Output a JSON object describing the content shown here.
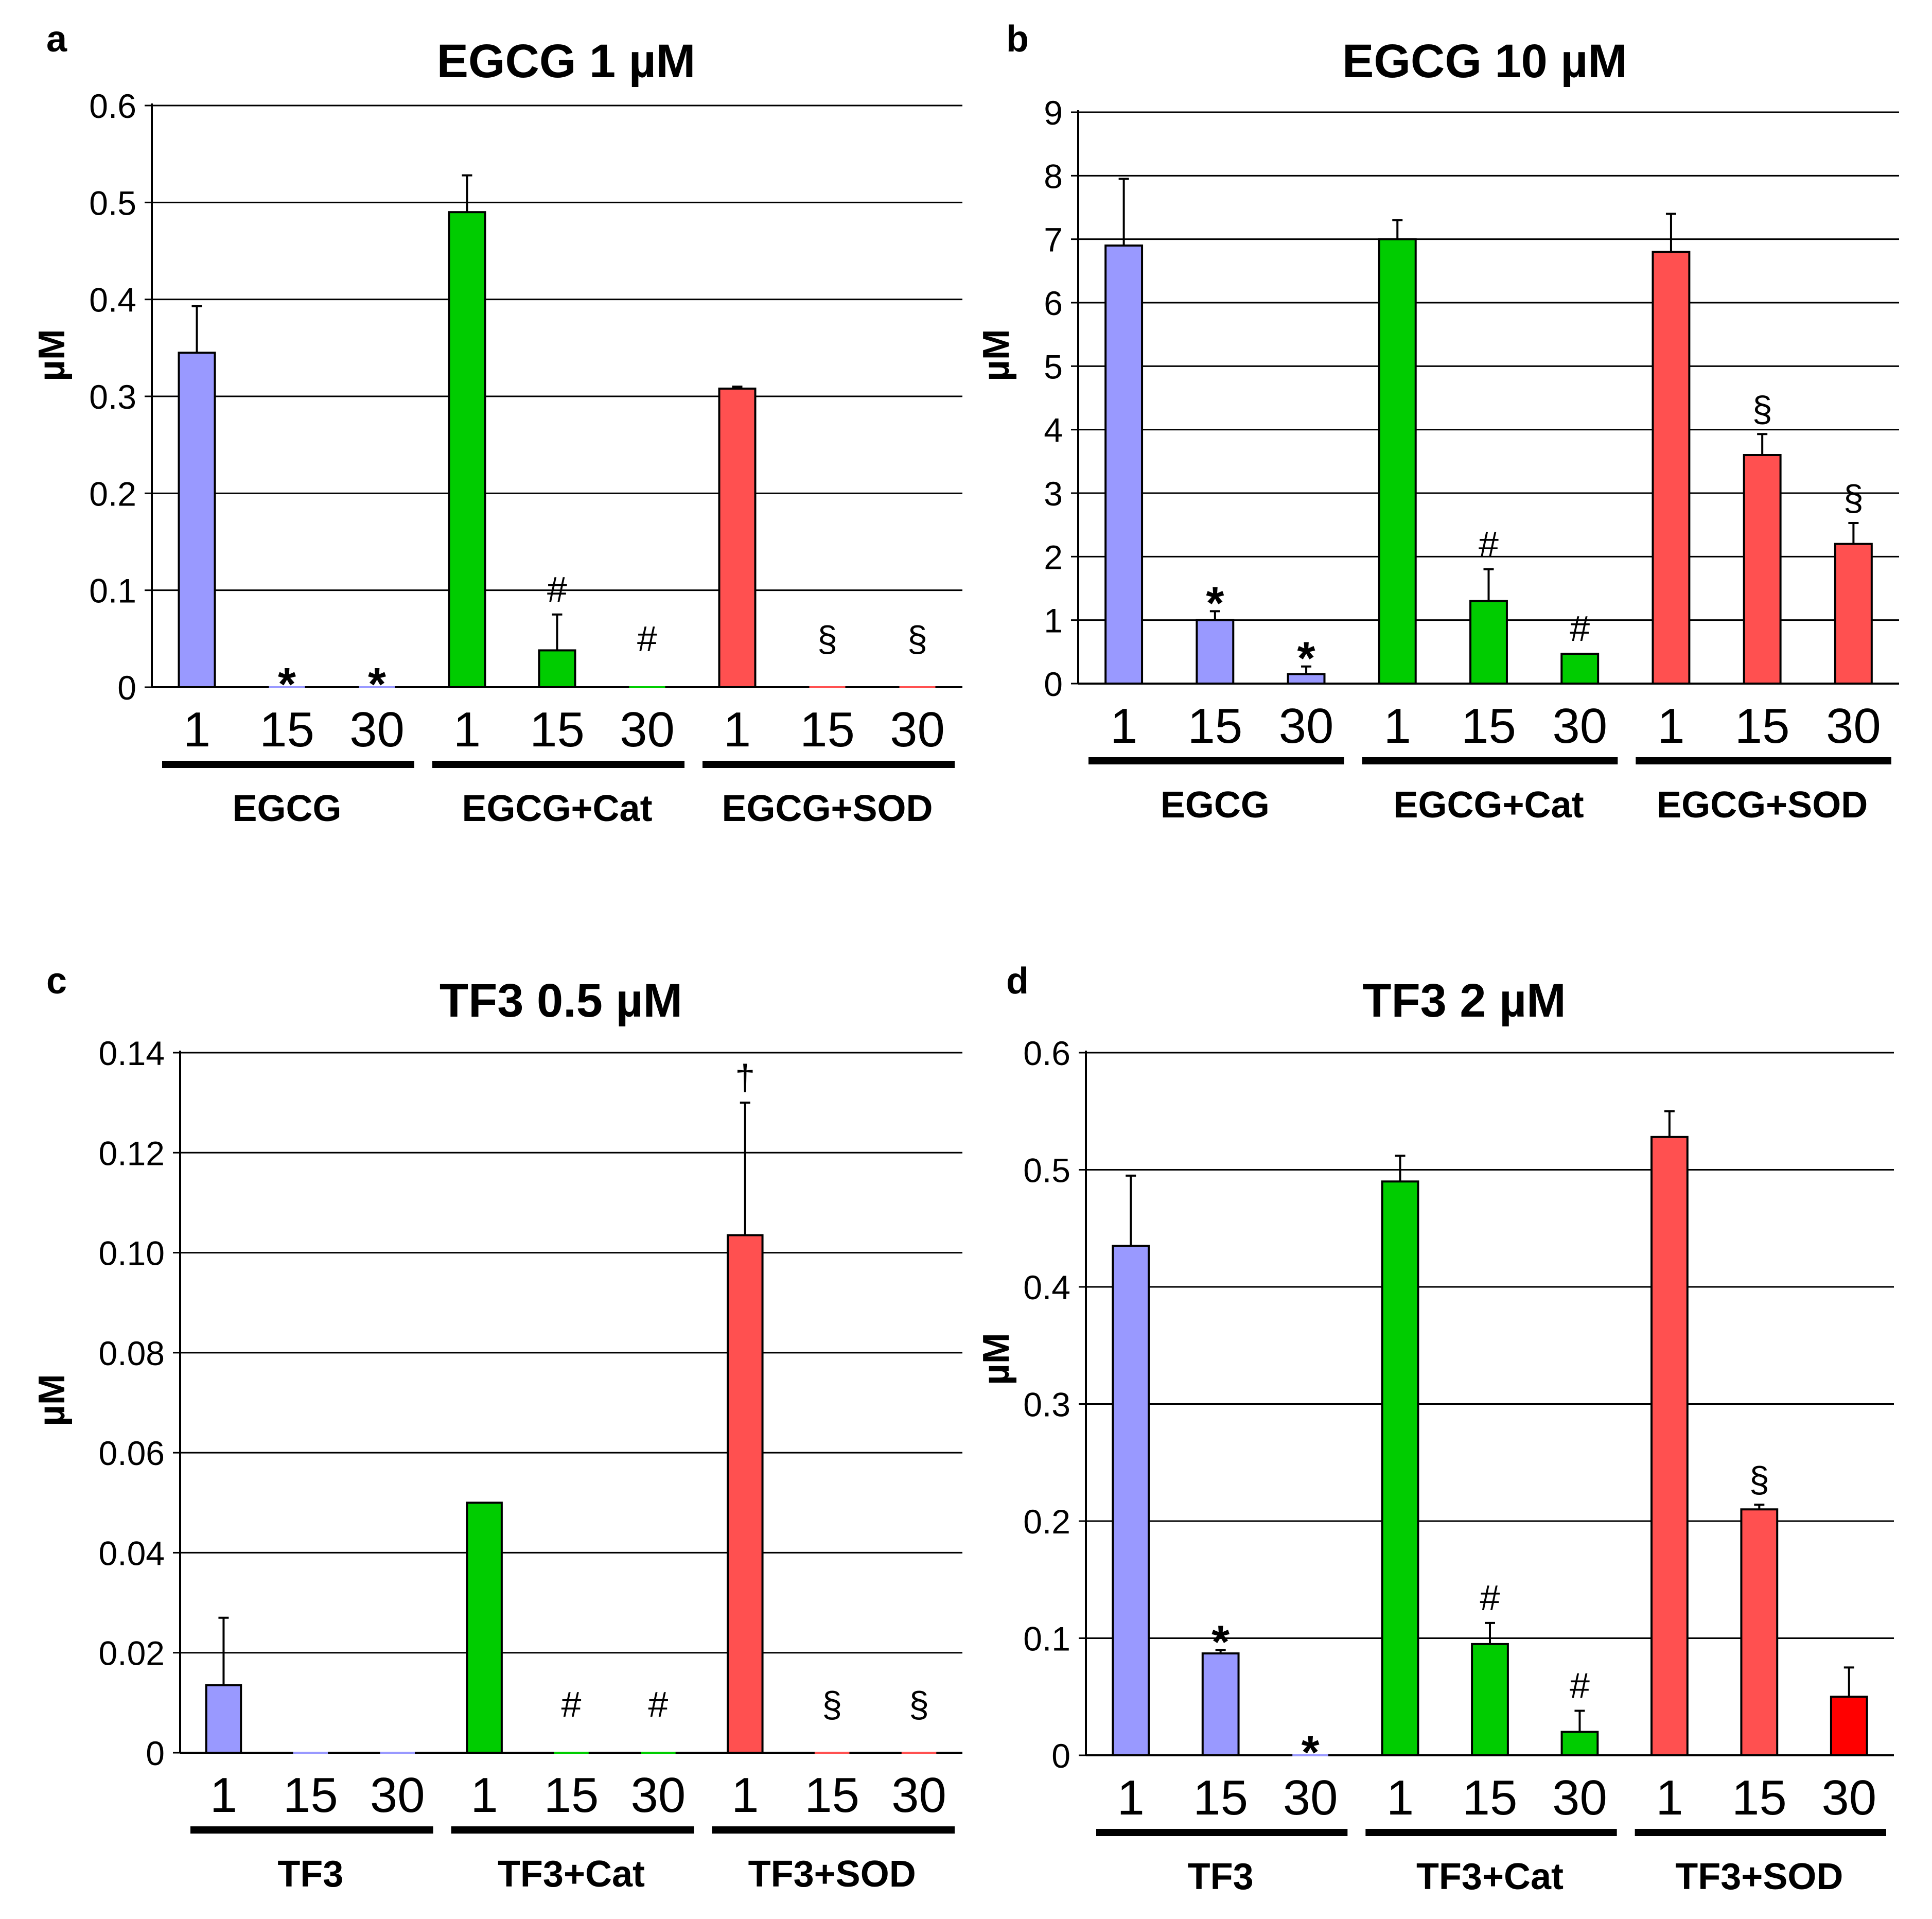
{
  "colors": {
    "blue": "#9999ff",
    "green": "#00cc00",
    "red": "#ff5050",
    "red_dark": "#ff0000",
    "gridline": "#000000",
    "text": "#000000"
  },
  "chart_data": [
    {
      "panel": "a",
      "type": "bar",
      "title": "EGCG 1 µM",
      "ylabel": "µM",
      "xlabel": "",
      "ylim": [
        0,
        0.6
      ],
      "yticks": [
        "0",
        "0.1",
        "0.2",
        "0.3",
        "0.4",
        "0.5",
        "0.6"
      ],
      "categories": [
        "1",
        "15",
        "30",
        "1",
        "15",
        "30",
        "1",
        "15",
        "30"
      ],
      "groups": [
        {
          "label": "EGCG",
          "color": "blue",
          "bars": [
            {
              "value": 0.345,
              "err": 0.048,
              "mark": ""
            },
            {
              "value": 0,
              "err": 0,
              "mark": "*"
            },
            {
              "value": 0,
              "err": 0,
              "mark": "*"
            }
          ]
        },
        {
          "label": "EGCG+Cat",
          "color": "green",
          "bars": [
            {
              "value": 0.49,
              "err": 0.038,
              "mark": ""
            },
            {
              "value": 0.038,
              "err": 0.037,
              "mark": "#"
            },
            {
              "value": 0,
              "err": 0,
              "mark": "#"
            }
          ]
        },
        {
          "label": "EGCG+SOD",
          "color": "red",
          "bars": [
            {
              "value": 0.308,
              "err": 0.002,
              "mark": ""
            },
            {
              "value": 0,
              "err": 0,
              "mark": "§"
            },
            {
              "value": 0,
              "err": 0,
              "mark": "§"
            }
          ]
        }
      ]
    },
    {
      "panel": "b",
      "type": "bar",
      "title": "EGCG 10 µM",
      "ylabel": "µM",
      "xlabel": "",
      "ylim": [
        0,
        9
      ],
      "yticks": [
        "0",
        "1",
        "2",
        "3",
        "4",
        "5",
        "6",
        "7",
        "8",
        "9"
      ],
      "categories": [
        "1",
        "15",
        "30",
        "1",
        "15",
        "30",
        "1",
        "15",
        "30"
      ],
      "groups": [
        {
          "label": "EGCG",
          "color": "blue",
          "bars": [
            {
              "value": 6.9,
              "err": 1.05,
              "mark": ""
            },
            {
              "value": 1.0,
              "err": 0.14,
              "mark": "*"
            },
            {
              "value": 0.15,
              "err": 0.12,
              "mark": "*"
            }
          ]
        },
        {
          "label": "EGCG+Cat",
          "color": "green",
          "bars": [
            {
              "value": 7.0,
              "err": 0.3,
              "mark": ""
            },
            {
              "value": 1.3,
              "err": 0.5,
              "mark": "#"
            },
            {
              "value": 0.47,
              "err": 0,
              "mark": "#"
            }
          ]
        },
        {
          "label": "EGCG+SOD",
          "color": "red",
          "bars": [
            {
              "value": 6.8,
              "err": 0.6,
              "mark": ""
            },
            {
              "value": 3.6,
              "err": 0.33,
              "mark": "§"
            },
            {
              "value": 2.2,
              "err": 0.33,
              "mark": "§"
            }
          ]
        }
      ]
    },
    {
      "panel": "c",
      "type": "bar",
      "title": "TF3 0.5 µM",
      "ylabel": "µM",
      "xlabel": "",
      "ylim": [
        0,
        0.14
      ],
      "yticks": [
        "0",
        "0.02",
        "0.04",
        "0.06",
        "0.08",
        "0.10",
        "0.12",
        "0.14"
      ],
      "categories": [
        "1",
        "15",
        "30",
        "1",
        "15",
        "30",
        "1",
        "15",
        "30"
      ],
      "groups": [
        {
          "label": "TF3",
          "color": "blue",
          "bars": [
            {
              "value": 0.0135,
              "err": 0.0135,
              "mark": ""
            },
            {
              "value": 0,
              "err": 0,
              "mark": ""
            },
            {
              "value": 0,
              "err": 0,
              "mark": ""
            }
          ]
        },
        {
          "label": "TF3+Cat",
          "color": "green",
          "bars": [
            {
              "value": 0.05,
              "err": 0,
              "mark": ""
            },
            {
              "value": 0,
              "err": 0,
              "mark": "#"
            },
            {
              "value": 0,
              "err": 0,
              "mark": "#"
            }
          ]
        },
        {
          "label": "TF3+SOD",
          "color": "red",
          "bars": [
            {
              "value": 0.1035,
              "err": 0.0265,
              "mark": "†"
            },
            {
              "value": 0,
              "err": 0,
              "mark": "§"
            },
            {
              "value": 0,
              "err": 0,
              "mark": "§"
            }
          ]
        }
      ]
    },
    {
      "panel": "d",
      "type": "bar",
      "title": "TF3 2 µM",
      "ylabel": "µM",
      "xlabel": "",
      "ylim": [
        0,
        0.6
      ],
      "yticks": [
        "0",
        "0.1",
        "0.2",
        "0.3",
        "0.4",
        "0.5",
        "0.6"
      ],
      "categories": [
        "1",
        "15",
        "30",
        "1",
        "15",
        "30",
        "1",
        "15",
        "30"
      ],
      "groups": [
        {
          "label": "TF3",
          "color": "blue",
          "bars": [
            {
              "value": 0.435,
              "err": 0.06,
              "mark": ""
            },
            {
              "value": 0.087,
              "err": 0.003,
              "mark": "*"
            },
            {
              "value": 0,
              "err": 0,
              "mark": "*"
            }
          ]
        },
        {
          "label": "TF3+Cat",
          "color": "green",
          "bars": [
            {
              "value": 0.49,
              "err": 0.022,
              "mark": ""
            },
            {
              "value": 0.095,
              "err": 0.018,
              "mark": "#"
            },
            {
              "value": 0.02,
              "err": 0.018,
              "mark": "#"
            }
          ]
        },
        {
          "label": "TF3+SOD",
          "color": "red",
          "bars": [
            {
              "value": 0.528,
              "err": 0.022,
              "mark": ""
            },
            {
              "value": 0.21,
              "err": 0.004,
              "mark": "§"
            },
            {
              "value": 0.05,
              "err": 0.025,
              "mark": "",
              "color": "red_dark"
            }
          ]
        }
      ]
    }
  ]
}
